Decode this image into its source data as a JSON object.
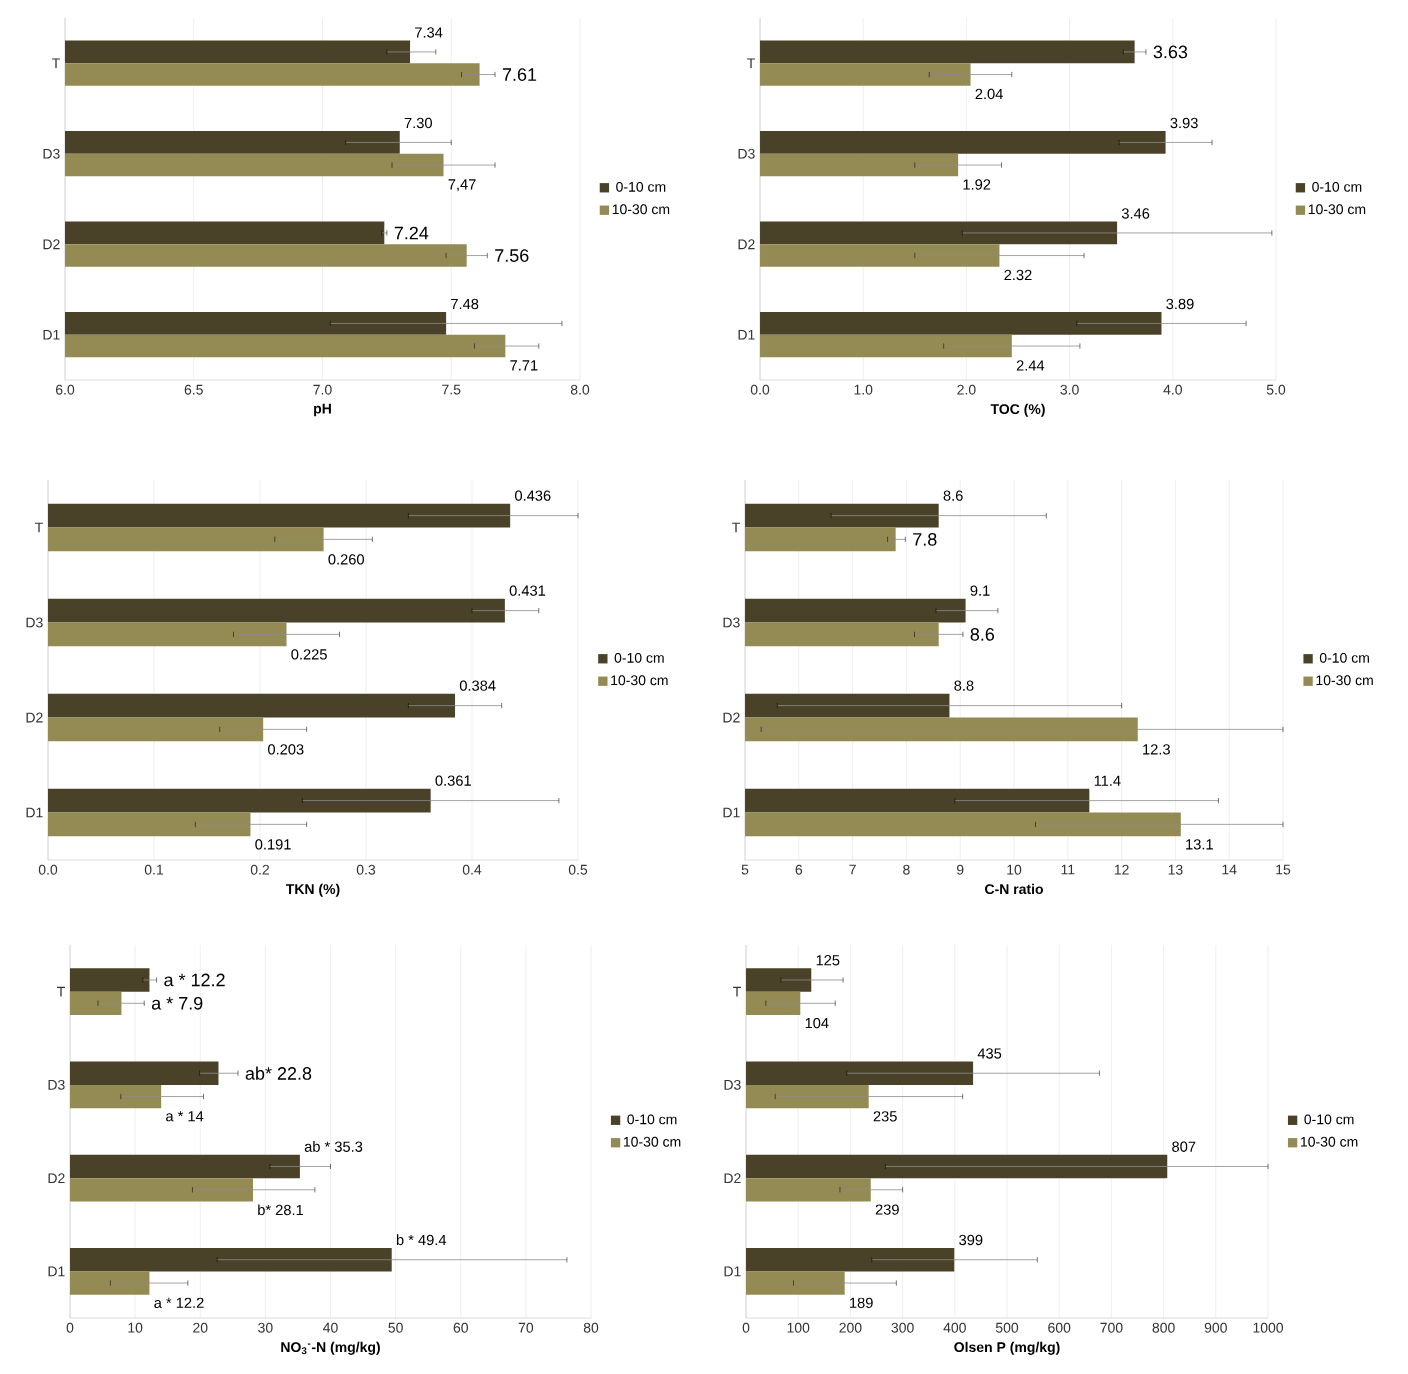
{
  "chart_data": [
    {
      "type": "bar",
      "orientation": "horizontal",
      "xlabel": "pH",
      "categories": [
        "T",
        "D3",
        "D2",
        "D1"
      ],
      "grid": "x",
      "legend": "right",
      "xlim": [
        6.0,
        8.0
      ],
      "xticks": [
        {
          "value": 6.0,
          "label": "6.0"
        },
        {
          "value": 6.5,
          "label": "6.5"
        },
        {
          "value": 7.0,
          "label": "7.0"
        },
        {
          "value": 7.5,
          "label": "7.5"
        },
        {
          "value": 8.0,
          "label": "8.0"
        }
      ],
      "series": [
        {
          "name": "0-10 cm",
          "color": "#4a4228",
          "values": [
            7.34,
            7.3,
            7.24,
            7.48
          ],
          "errors": [
            [
              7.25,
              7.44
            ],
            [
              7.09,
              7.5
            ],
            [
              7.23,
              7.25
            ],
            [
              7.03,
              7.93
            ]
          ],
          "value_labels": [
            "7.34",
            "7.30",
            "7.24",
            "7.48"
          ]
        },
        {
          "name": "10-30 cm",
          "color": "#948a54",
          "values": [
            7.61,
            7.47,
            7.56,
            7.71
          ],
          "errors": [
            [
              7.54,
              7.67
            ],
            [
              7.27,
              7.67
            ],
            [
              7.48,
              7.64
            ],
            [
              7.59,
              7.84
            ]
          ],
          "value_labels": [
            "7.61",
            "7,47",
            "7.56",
            "7.71"
          ]
        }
      ]
    },
    {
      "type": "bar",
      "orientation": "horizontal",
      "xlabel": "TOC (%)",
      "categories": [
        "T",
        "D3",
        "D2",
        "D1"
      ],
      "grid": "x",
      "legend": "right",
      "xlim": [
        0,
        5.0
      ],
      "xticks": [
        {
          "value": 0,
          "label": "0.0"
        },
        {
          "value": 1,
          "label": "1.0"
        },
        {
          "value": 2,
          "label": "2.0"
        },
        {
          "value": 3,
          "label": "3.0"
        },
        {
          "value": 4,
          "label": "4.0"
        },
        {
          "value": 5,
          "label": "5.0"
        }
      ],
      "series": [
        {
          "name": "0-10 cm",
          "color": "#4a4228",
          "values": [
            3.63,
            3.93,
            3.46,
            3.89
          ],
          "errors": [
            [
              3.52,
              3.74
            ],
            [
              3.48,
              4.38
            ],
            [
              1.96,
              4.96
            ],
            [
              3.07,
              4.71
            ]
          ],
          "value_labels": [
            "3.63",
            "3.93",
            "3.46",
            "3.89"
          ]
        },
        {
          "name": "10-30 cm",
          "color": "#948a54",
          "values": [
            2.04,
            1.92,
            2.32,
            2.44
          ],
          "errors": [
            [
              1.64,
              2.44
            ],
            [
              1.5,
              2.34
            ],
            [
              1.5,
              3.14
            ],
            [
              1.78,
              3.1
            ]
          ],
          "value_labels": [
            "2.04",
            "1.92",
            "2.32",
            "2.44"
          ]
        }
      ]
    },
    {
      "type": "bar",
      "orientation": "horizontal",
      "xlabel": "TKN (%)",
      "categories": [
        "T",
        "D3",
        "D2",
        "D1"
      ],
      "grid": "x",
      "legend": "right",
      "xlim": [
        0,
        0.5
      ],
      "xticks": [
        {
          "value": 0,
          "label": "0.0"
        },
        0.1,
        0.2,
        0.3,
        0.4,
        0.5
      ],
      "series": [
        {
          "name": "0-10 cm",
          "color": "#4a4228",
          "values": [
            0.436,
            0.431,
            0.384,
            0.361
          ],
          "errors": [
            [
              0.34,
              0.5
            ],
            [
              0.4,
              0.463
            ],
            [
              0.34,
              0.428
            ],
            [
              0.24,
              0.482
            ]
          ],
          "value_labels": [
            "0.436",
            "0.431",
            "0.384",
            "0.361"
          ]
        },
        {
          "name": "10-30 cm",
          "color": "#948a54",
          "values": [
            0.26,
            0.225,
            0.203,
            0.191
          ],
          "errors": [
            [
              0.214,
              0.306
            ],
            [
              0.175,
              0.275
            ],
            [
              0.162,
              0.244
            ],
            [
              0.139,
              0.244
            ]
          ],
          "value_labels": [
            "0.260",
            "0.225",
            "0.203",
            "0.191"
          ]
        }
      ]
    },
    {
      "type": "bar",
      "orientation": "horizontal",
      "xlabel": "C-N ratio",
      "categories": [
        "T",
        "D3",
        "D2",
        "D1"
      ],
      "grid": "x",
      "legend": "right",
      "xlim": [
        5,
        15
      ],
      "xticks": [
        5,
        6,
        7,
        8,
        9,
        10,
        11,
        12,
        13,
        14,
        15
      ],
      "series": [
        {
          "name": "0-10 cm",
          "color": "#4a4228",
          "values": [
            8.6,
            9.1,
            8.8,
            11.4
          ],
          "errors": [
            [
              6.6,
              10.6
            ],
            [
              8.55,
              9.7
            ],
            [
              5.6,
              12.0
            ],
            [
              8.9,
              13.8
            ]
          ],
          "value_labels": [
            "8.6",
            "9.1",
            "8.8",
            "11.4"
          ]
        },
        {
          "name": "10-30 cm",
          "color": "#948a54",
          "values": [
            7.8,
            8.6,
            12.3,
            13.1
          ],
          "errors": [
            [
              7.65,
              7.98
            ],
            [
              8.15,
              9.05
            ],
            [
              5.3,
              15.0
            ],
            [
              10.4,
              15.0
            ]
          ],
          "value_labels": [
            "7.8",
            "8.6",
            "12.3",
            "13.1"
          ]
        }
      ]
    },
    {
      "type": "bar",
      "orientation": "horizontal",
      "xlabel": "NO$_{3}$$^{-}$-N (mg/kg)",
      "categories": [
        "T",
        "D3",
        "D2",
        "D1"
      ],
      "grid": "x",
      "legend": "right",
      "xlim": [
        0,
        80
      ],
      "xticks": [
        0,
        10,
        20,
        30,
        40,
        50,
        60,
        70,
        80
      ],
      "series": [
        {
          "name": "0-10 cm",
          "color": "#4a4228",
          "values": [
            12.2,
            22.8,
            35.3,
            49.4
          ],
          "errors": [
            [
              11.2,
              13.3
            ],
            [
              19.9,
              25.8
            ],
            [
              30.7,
              40.0
            ],
            [
              22.6,
              76.3
            ]
          ],
          "value_labels": [
            "a * 12.2",
            "ab* 22.8",
            "ab * 35.3",
            "b * 49.4"
          ]
        },
        {
          "name": "10-30 cm",
          "color": "#948a54",
          "values": [
            7.9,
            14,
            28.1,
            12.2
          ],
          "errors": [
            [
              4.3,
              11.4
            ],
            [
              7.8,
              20.5
            ],
            [
              18.8,
              37.6
            ],
            [
              6.2,
              18.1
            ]
          ],
          "value_labels": [
            "a * 7.9",
            "a * 14",
            "b* 28.1",
            "a * 12.2"
          ]
        }
      ]
    },
    {
      "type": "bar",
      "orientation": "horizontal",
      "xlabel": "Olsen P (mg/kg)",
      "categories": [
        "T",
        "D3",
        "D2",
        "D1"
      ],
      "grid": "x",
      "legend": "right",
      "xlim": [
        0,
        1000
      ],
      "xticks": [
        0,
        100,
        200,
        300,
        400,
        500,
        600,
        700,
        800,
        900,
        1000
      ],
      "series": [
        {
          "name": "0-10 cm",
          "color": "#4a4228",
          "values": [
            125,
            435,
            807,
            399
          ],
          "errors": [
            [
              67,
              186
            ],
            [
              193,
              677
            ],
            [
              267,
              1000
            ],
            [
              241,
              558
            ]
          ],
          "value_labels": [
            "125",
            "435",
            "807",
            "399"
          ]
        },
        {
          "name": "10-30 cm",
          "color": "#948a54",
          "values": [
            104,
            235,
            239,
            189
          ],
          "errors": [
            [
              38,
              171
            ],
            [
              56,
              415
            ],
            [
              180,
              300
            ],
            [
              91,
              288
            ]
          ],
          "value_labels": [
            "104",
            "235",
            "239",
            "189"
          ]
        }
      ]
    }
  ]
}
